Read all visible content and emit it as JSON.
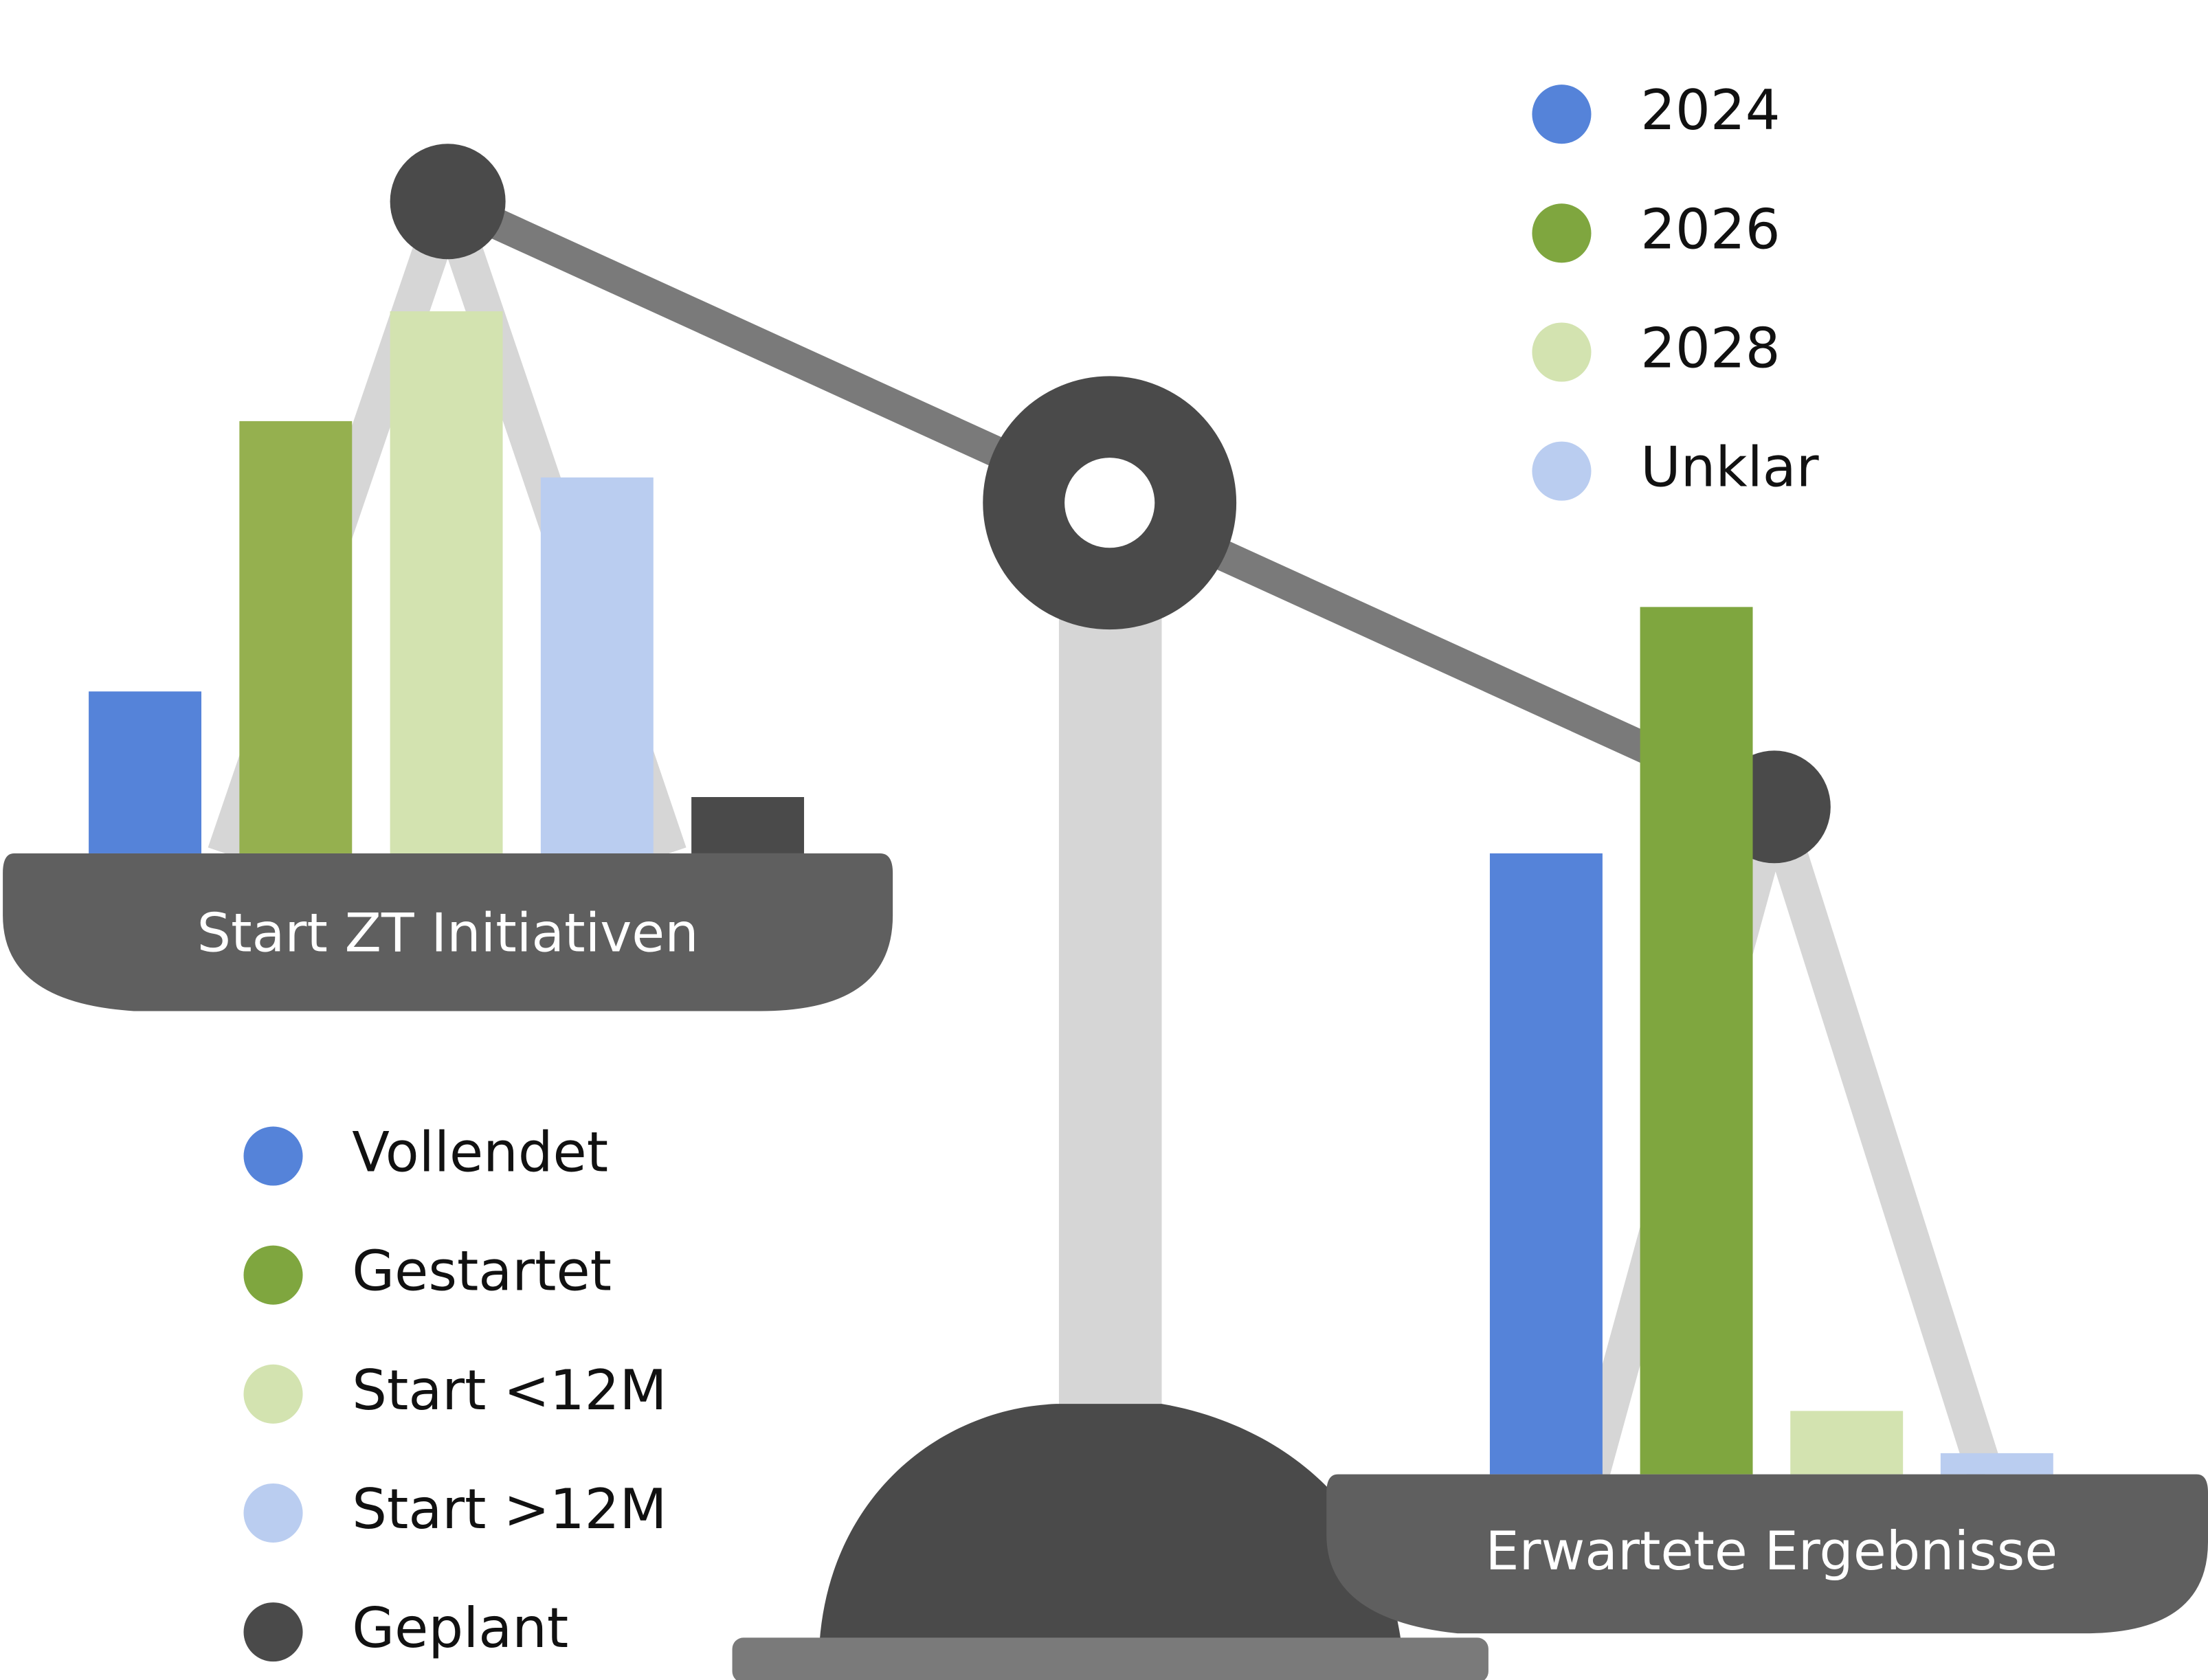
{
  "chart_data": [
    {
      "type": "bar",
      "title": "Start ZT Initiativen",
      "categories": [
        "Vollendet",
        "Gestartet",
        "Start <12M",
        "Start >12M",
        "Geplant"
      ],
      "values": [
        11.5,
        30.7,
        38.5,
        26.7,
        4
      ],
      "colors": [
        "#5583d9",
        "#95b04f",
        "#d3e3b0",
        "#bacdf0",
        "#4a4a4a"
      ],
      "legend_colors": [
        "#5583d9",
        "#7fa63f",
        "#d3e3b0",
        "#bacdf0",
        "#4a4a4a"
      ]
    },
    {
      "type": "bar",
      "title": "Erwartete Ergebnisse",
      "categories": [
        "2024",
        "2026",
        "2028",
        "Unklar"
      ],
      "values": [
        44.1,
        61.6,
        4.5,
        1.5
      ],
      "colors": [
        "#5583d9",
        "#7fa63f",
        "#d3e3b0",
        "#bacdf0"
      ],
      "legend_colors": [
        "#5583d9",
        "#7fa63f",
        "#d3e3b0",
        "#bacdf0"
      ]
    }
  ]
}
